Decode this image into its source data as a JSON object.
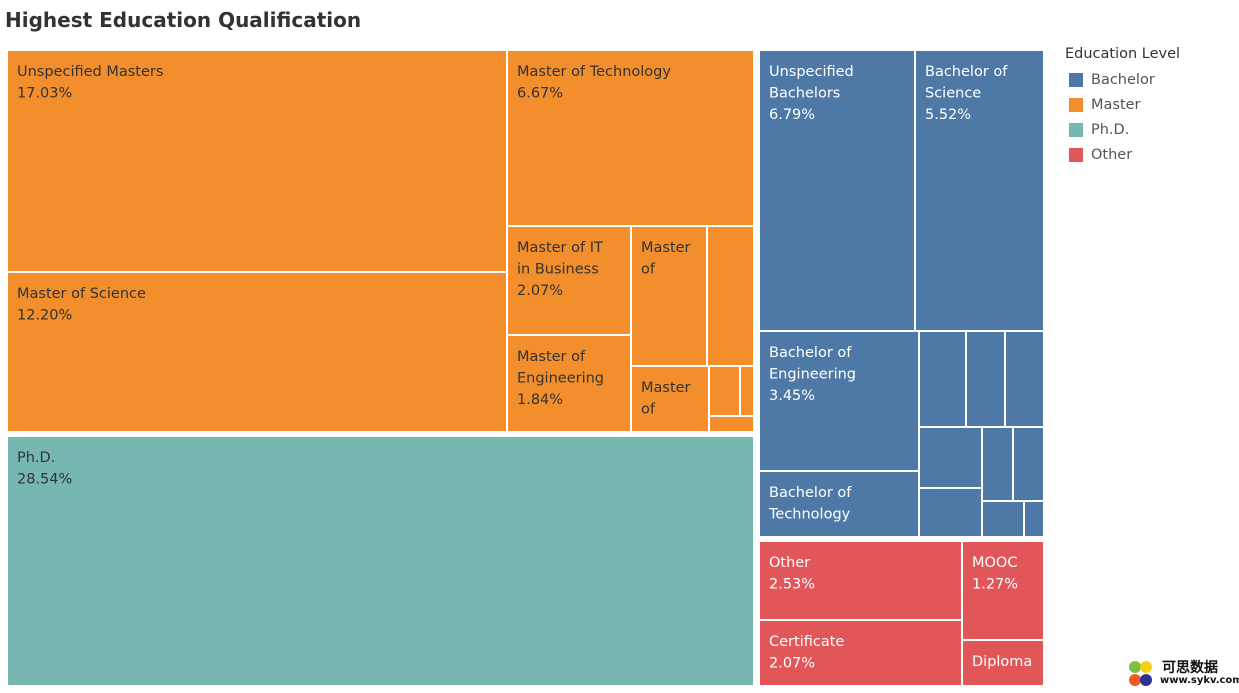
{
  "title": "Highest Education Qualification",
  "legend": {
    "title": "Education Level",
    "items": [
      {
        "label": "Bachelor",
        "color": "#4e79a7"
      },
      {
        "label": "Master",
        "color": "#f28e2b"
      },
      {
        "label": "Ph.D.",
        "color": "#76b7b2"
      },
      {
        "label": "Other",
        "color": "#e15759"
      }
    ]
  },
  "watermark": {
    "cn": "可思数据",
    "url": "www.sykv.com"
  },
  "chart_data": {
    "type": "treemap",
    "title": "Highest Education Qualification",
    "legend_title": "Education Level",
    "legend_position": "right",
    "groups": [
      {
        "name": "Master",
        "color": "#f28e2b",
        "tiles": [
          {
            "label": "Unspecified Masters",
            "value": "17.03%"
          },
          {
            "label": "Master of Science",
            "value": "12.20%"
          },
          {
            "label": "Master of Technology",
            "value": "6.67%"
          },
          {
            "label": "Master of IT in Business",
            "value": "2.07%"
          },
          {
            "label": "Master of",
            "value": ""
          },
          {
            "label": "",
            "value": ""
          },
          {
            "label": "Master of Engineering",
            "value": "1.84%"
          },
          {
            "label": "Master of",
            "value": ""
          },
          {
            "label": "",
            "value": ""
          },
          {
            "label": "",
            "value": ""
          },
          {
            "label": "",
            "value": ""
          },
          {
            "label": "",
            "value": ""
          }
        ]
      },
      {
        "name": "Ph.D.",
        "color": "#76b7b2",
        "tiles": [
          {
            "label": "Ph.D.",
            "value": "28.54%"
          }
        ]
      },
      {
        "name": "Bachelor",
        "color": "#4e79a7",
        "tiles": [
          {
            "label": "Unspecified Bachelors",
            "value": "6.79%"
          },
          {
            "label": "Bachelor of Science",
            "value": "5.52%"
          },
          {
            "label": "Bachelor of Engineering",
            "value": "3.45%"
          },
          {
            "label": "Bachelor of Technology",
            "value": ""
          },
          {
            "label": "",
            "value": ""
          },
          {
            "label": "",
            "value": ""
          },
          {
            "label": "",
            "value": ""
          },
          {
            "label": "",
            "value": ""
          },
          {
            "label": "",
            "value": ""
          },
          {
            "label": "",
            "value": ""
          },
          {
            "label": "",
            "value": ""
          },
          {
            "label": "",
            "value": ""
          },
          {
            "label": "",
            "value": ""
          }
        ]
      },
      {
        "name": "Other",
        "color": "#e15759",
        "tiles": [
          {
            "label": "Other",
            "value": "2.53%"
          },
          {
            "label": "MOOC",
            "value": "1.27%"
          },
          {
            "label": "Certificate",
            "value": "2.07%"
          },
          {
            "label": "Diploma",
            "value": ""
          }
        ]
      }
    ]
  }
}
